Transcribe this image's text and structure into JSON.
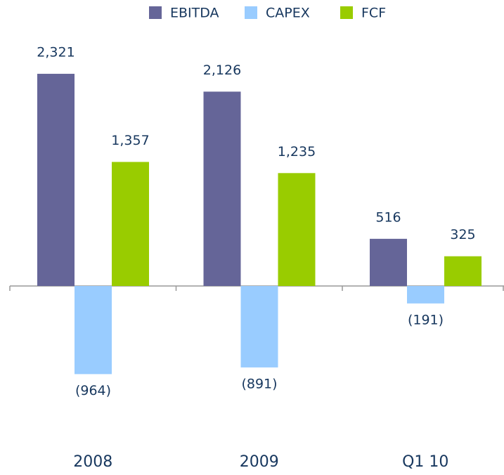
{
  "chart_data": {
    "type": "bar",
    "categories": [
      "2008",
      "2009",
      "Q1 10"
    ],
    "series": [
      {
        "name": "EBITDA",
        "color": "#656598",
        "values": [
          2321,
          2126,
          516
        ],
        "value_labels": [
          "2,321",
          "2,126",
          "516"
        ]
      },
      {
        "name": "CAPEX",
        "color": "#99ccff",
        "values": [
          -964,
          -891,
          -191
        ],
        "value_labels": [
          "(964)",
          "(891)",
          "(191)"
        ]
      },
      {
        "name": "FCF",
        "color": "#99cc00",
        "values": [
          1357,
          1235,
          325
        ],
        "value_labels": [
          "1,357",
          "1,235",
          "325"
        ]
      }
    ],
    "legend": "top"
  }
}
